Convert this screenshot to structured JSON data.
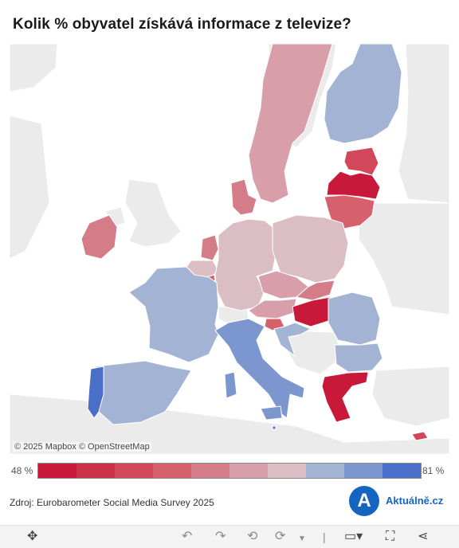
{
  "title": "Kolik % obyvatel získává informace z televize?",
  "attribution": "© 2025 Mapbox  © OpenStreetMap",
  "legend": {
    "min_label": "48 %",
    "max_label": "81 %",
    "colors": [
      "#c8193a",
      "#cd3049",
      "#d2475a",
      "#d6616d",
      "#d47c88",
      "#d89ea9",
      "#dbbec4",
      "#a3b3d4",
      "#7c96d0",
      "#4a6fc8"
    ]
  },
  "source": "Zdroj: Eurobarometer Social Media Survey 2025",
  "brand": {
    "logo_letter": "A",
    "name": "Aktuálně.cz"
  },
  "colors": {
    "sea": "#ffffff",
    "land": "#ebebeb",
    "border": "#ffffff"
  },
  "regions": [
    {
      "name": "Sweden",
      "color": "#d89ea9"
    },
    {
      "name": "Finland",
      "color": "#a3b3d4"
    },
    {
      "name": "Estonia",
      "color": "#d2475a"
    },
    {
      "name": "Latvia",
      "color": "#c8193a"
    },
    {
      "name": "Lithuania",
      "color": "#d6616d"
    },
    {
      "name": "Ireland",
      "color": "#d47c88"
    },
    {
      "name": "Denmark",
      "color": "#d47c88"
    },
    {
      "name": "Netherlands",
      "color": "#d47c88"
    },
    {
      "name": "Belgium",
      "color": "#dbbec4"
    },
    {
      "name": "Luxembourg",
      "color": "#d6616d"
    },
    {
      "name": "Germany",
      "color": "#dbbec4"
    },
    {
      "name": "Poland",
      "color": "#dbbec4"
    },
    {
      "name": "Czechia",
      "color": "#d89ea9"
    },
    {
      "name": "Slovakia",
      "color": "#d47c88"
    },
    {
      "name": "Austria",
      "color": "#d89ea9"
    },
    {
      "name": "Hungary",
      "color": "#c8193a"
    },
    {
      "name": "Slovenia",
      "color": "#d6616d"
    },
    {
      "name": "Croatia",
      "color": "#a3b3d4"
    },
    {
      "name": "Romania",
      "color": "#a3b3d4"
    },
    {
      "name": "Bulgaria",
      "color": "#a3b3d4"
    },
    {
      "name": "France",
      "color": "#a3b3d4"
    },
    {
      "name": "Spain",
      "color": "#a3b3d4"
    },
    {
      "name": "Portugal",
      "color": "#4a6fc8"
    },
    {
      "name": "Italy",
      "color": "#7c96d0"
    },
    {
      "name": "Greece",
      "color": "#c8193a"
    },
    {
      "name": "Cyprus",
      "color": "#d2475a"
    },
    {
      "name": "Malta",
      "color": "#4a6fc8"
    }
  ],
  "toolbar": [
    "move-icon",
    "undo-icon",
    "redo-icon",
    "revert-icon",
    "refresh-icon",
    "dropdown-icon",
    "comment-icon",
    "fullscreen-icon",
    "share-icon"
  ]
}
